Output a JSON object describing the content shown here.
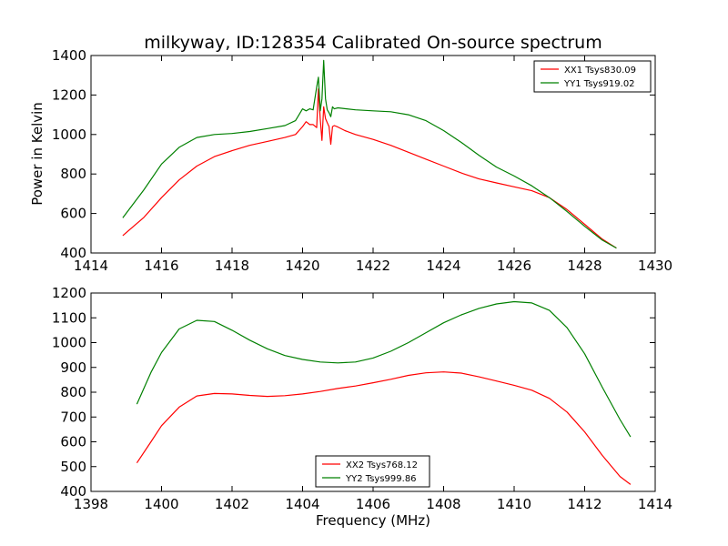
{
  "chart_data": [
    {
      "type": "line",
      "title": "milkyway, ID:128354 Calibrated On-source spectrum",
      "xlabel": "",
      "ylabel": "Power in Kelvin",
      "xlim": [
        1414,
        1430
      ],
      "ylim": [
        400,
        1400
      ],
      "xticks": [
        1414,
        1416,
        1418,
        1420,
        1422,
        1424,
        1426,
        1428,
        1430
      ],
      "yticks": [
        400,
        600,
        800,
        1000,
        1200,
        1400
      ],
      "grid": false,
      "legend": "top-right",
      "series": [
        {
          "name": "XX1 Tsys830.09",
          "color": "#ff0000",
          "x": [
            1414.9,
            1415.5,
            1416.0,
            1416.5,
            1417.0,
            1417.5,
            1418.0,
            1418.5,
            1419.0,
            1419.5,
            1419.8,
            1420.0,
            1420.1,
            1420.2,
            1420.3,
            1420.4,
            1420.45,
            1420.5,
            1420.55,
            1420.6,
            1420.65,
            1420.7,
            1420.75,
            1420.8,
            1420.85,
            1420.9,
            1421.0,
            1421.2,
            1421.5,
            1422.0,
            1422.5,
            1423.0,
            1423.5,
            1424.0,
            1424.5,
            1425.0,
            1425.5,
            1426.0,
            1426.5,
            1427.0,
            1427.5,
            1428.0,
            1428.5,
            1428.9
          ],
          "values": [
            488,
            580,
            680,
            770,
            840,
            888,
            918,
            945,
            965,
            985,
            1000,
            1040,
            1065,
            1050,
            1050,
            1035,
            1230,
            1080,
            970,
            1140,
            1080,
            1060,
            1040,
            950,
            1040,
            1045,
            1038,
            1020,
            1000,
            975,
            945,
            910,
            875,
            840,
            805,
            775,
            755,
            735,
            715,
            680,
            620,
            545,
            470,
            425
          ]
        },
        {
          "name": "YY1 Tsys919.02",
          "color": "#008000",
          "x": [
            1414.9,
            1415.5,
            1416.0,
            1416.5,
            1417.0,
            1417.5,
            1418.0,
            1418.5,
            1419.0,
            1419.5,
            1419.8,
            1420.0,
            1420.1,
            1420.2,
            1420.3,
            1420.4,
            1420.45,
            1420.5,
            1420.55,
            1420.6,
            1420.65,
            1420.7,
            1420.75,
            1420.8,
            1420.85,
            1420.9,
            1421.0,
            1421.5,
            1422.0,
            1422.5,
            1423.0,
            1423.5,
            1424.0,
            1424.5,
            1425.0,
            1425.5,
            1426.0,
            1426.5,
            1427.0,
            1427.5,
            1428.0,
            1428.5,
            1428.9
          ],
          "values": [
            578,
            720,
            850,
            935,
            985,
            1000,
            1005,
            1015,
            1030,
            1045,
            1070,
            1130,
            1120,
            1130,
            1125,
            1240,
            1290,
            1120,
            1180,
            1375,
            1180,
            1125,
            1110,
            1090,
            1140,
            1130,
            1135,
            1125,
            1120,
            1115,
            1100,
            1070,
            1020,
            960,
            895,
            835,
            790,
            740,
            680,
            610,
            535,
            465,
            425
          ]
        }
      ]
    },
    {
      "type": "line",
      "title": "",
      "xlabel": "Frequency (MHz)",
      "ylabel": "",
      "xlim": [
        1398,
        1414
      ],
      "ylim": [
        400,
        1200
      ],
      "xticks": [
        1398,
        1400,
        1402,
        1404,
        1406,
        1408,
        1410,
        1412,
        1414
      ],
      "yticks": [
        400,
        500,
        600,
        700,
        800,
        900,
        1000,
        1100,
        1200
      ],
      "grid": false,
      "legend": "bottom-center",
      "series": [
        {
          "name": "XX2 Tsys768.12",
          "color": "#ff0000",
          "x": [
            1399.3,
            1399.7,
            1400.0,
            1400.5,
            1401.0,
            1401.5,
            1402.0,
            1402.5,
            1403.0,
            1403.5,
            1404.0,
            1404.5,
            1405.0,
            1405.5,
            1406.0,
            1406.5,
            1407.0,
            1407.5,
            1408.0,
            1408.5,
            1409.0,
            1409.5,
            1410.0,
            1410.5,
            1411.0,
            1411.5,
            1412.0,
            1412.5,
            1413.0,
            1413.3
          ],
          "values": [
            515,
            600,
            665,
            740,
            785,
            795,
            793,
            787,
            783,
            786,
            793,
            803,
            815,
            825,
            838,
            852,
            868,
            878,
            882,
            877,
            862,
            845,
            828,
            808,
            775,
            720,
            640,
            545,
            460,
            428
          ]
        },
        {
          "name": "YY2 Tsys999.86",
          "color": "#008000",
          "x": [
            1399.3,
            1399.7,
            1400.0,
            1400.5,
            1401.0,
            1401.5,
            1402.0,
            1402.5,
            1403.0,
            1403.5,
            1404.0,
            1404.5,
            1405.0,
            1405.5,
            1406.0,
            1406.5,
            1407.0,
            1407.5,
            1408.0,
            1408.5,
            1409.0,
            1409.5,
            1410.0,
            1410.5,
            1411.0,
            1411.5,
            1412.0,
            1412.5,
            1413.0,
            1413.3
          ],
          "values": [
            752,
            880,
            960,
            1055,
            1090,
            1085,
            1050,
            1010,
            975,
            948,
            932,
            922,
            918,
            922,
            938,
            965,
            1000,
            1040,
            1080,
            1112,
            1138,
            1156,
            1165,
            1160,
            1130,
            1060,
            955,
            820,
            690,
            620
          ]
        }
      ]
    }
  ]
}
